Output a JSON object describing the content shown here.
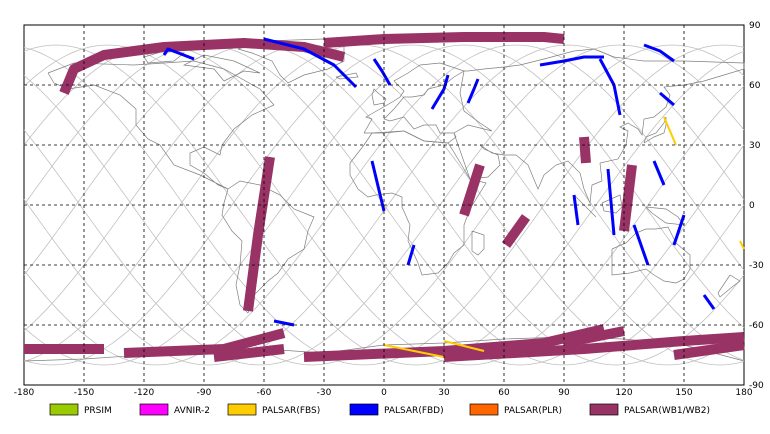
{
  "map": {
    "projection": "equirectangular",
    "lon_ticks": [
      -180,
      -150,
      -120,
      -90,
      -60,
      -30,
      0,
      30,
      60,
      90,
      120,
      150,
      180
    ],
    "lat_ticks": [
      90,
      60,
      30,
      0,
      -30,
      -60,
      -90
    ],
    "lon_tick_labels": [
      "-180",
      "-150",
      "-120",
      "-90",
      "-60",
      "-30",
      "0",
      "30",
      "60",
      "90",
      "120",
      "150",
      "180"
    ],
    "lat_tick_labels": [
      "90",
      "60",
      "30",
      "0",
      "-30",
      "-60",
      "-90"
    ],
    "grid": "dashed",
    "background": "#ffffff"
  },
  "legend": [
    {
      "label": "PRSIM",
      "color": "#99cc00"
    },
    {
      "label": "AVNIR-2",
      "color": "#ff00ff"
    },
    {
      "label": "PALSAR(FBS)",
      "color": "#ffcc00"
    },
    {
      "label": "PALSAR(FBD)",
      "color": "#0000ff"
    },
    {
      "label": "PALSAR(PLR)",
      "color": "#ff6600"
    },
    {
      "label": "PALSAR(WB1/WB2)",
      "color": "#993366"
    }
  ],
  "observations": {
    "wb": [
      {
        "lon": [
          -160,
          -155,
          -140,
          -110,
          -70,
          -40,
          -20
        ],
        "lat": [
          56,
          68,
          75,
          79,
          81,
          79,
          74
        ]
      },
      {
        "lon": [
          -30,
          0,
          40,
          80,
          90
        ],
        "lat": [
          81,
          83,
          84,
          84,
          83
        ]
      },
      {
        "lon": [
          -57,
          -63,
          -68
        ],
        "lat": [
          24,
          -15,
          -53
        ]
      },
      {
        "lon": [
          -180,
          -140
        ],
        "lat": [
          -72,
          -72
        ]
      },
      {
        "lon": [
          -130,
          -80,
          -50
        ],
        "lat": [
          -74,
          -72,
          -64
        ]
      },
      {
        "lon": [
          -85,
          -50
        ],
        "lat": [
          -76,
          -72
        ]
      },
      {
        "lon": [
          -40,
          30,
          80,
          110
        ],
        "lat": [
          -76,
          -73,
          -69,
          -62
        ]
      },
      {
        "lon": [
          30,
          100,
          150,
          180
        ],
        "lat": [
          -76,
          -72,
          -68,
          -66
        ]
      },
      {
        "lon": [
          90,
          120
        ],
        "lat": [
          -69,
          -63
        ]
      },
      {
        "lon": [
          145,
          180
        ],
        "lat": [
          -75,
          -70
        ]
      },
      {
        "lon": [
          40,
          48
        ],
        "lat": [
          -5,
          20
        ]
      },
      {
        "lon": [
          101,
          100
        ],
        "lat": [
          21,
          34
        ]
      },
      {
        "lon": [
          120,
          124
        ],
        "lat": [
          -13,
          20
        ]
      },
      {
        "lon": [
          71,
          61
        ],
        "lat": [
          -6,
          -20
        ]
      }
    ],
    "fbd": [
      {
        "lon": [
          -110,
          -108,
          -95
        ],
        "lat": [
          75,
          78,
          73
        ]
      },
      {
        "lon": [
          -60,
          -40,
          -25,
          -14
        ],
        "lat": [
          83,
          78,
          70,
          59
        ]
      },
      {
        "lon": [
          78,
          90,
          100,
          110
        ],
        "lat": [
          70,
          72,
          74,
          74
        ]
      },
      {
        "lon": [
          24,
          30,
          32
        ],
        "lat": [
          48,
          58,
          65
        ]
      },
      {
        "lon": [
          42,
          45,
          47
        ],
        "lat": [
          51,
          58,
          63
        ]
      },
      {
        "lon": [
          -5,
          -1,
          3
        ],
        "lat": [
          73,
          67,
          60
        ]
      },
      {
        "lon": [
          108,
          115,
          118
        ],
        "lat": [
          73,
          60,
          45
        ]
      },
      {
        "lon": [
          130,
          138,
          145
        ],
        "lat": [
          80,
          77,
          72
        ]
      },
      {
        "lon": [
          138,
          145
        ],
        "lat": [
          56,
          50
        ]
      },
      {
        "lon": [
          95,
          97
        ],
        "lat": [
          5,
          -10
        ]
      },
      {
        "lon": [
          125,
          132
        ],
        "lat": [
          -10,
          -30
        ]
      },
      {
        "lon": [
          -6,
          0
        ],
        "lat": [
          22,
          -3
        ]
      },
      {
        "lon": [
          15,
          12
        ],
        "lat": [
          -20,
          -30
        ]
      },
      {
        "lon": [
          112,
          115
        ],
        "lat": [
          18,
          -15
        ]
      },
      {
        "lon": [
          150,
          145
        ],
        "lat": [
          -5,
          -20
        ]
      },
      {
        "lon": [
          135,
          140
        ],
        "lat": [
          22,
          10
        ]
      },
      {
        "lon": [
          -55,
          -45
        ],
        "lat": [
          -58,
          -60
        ]
      },
      {
        "lon": [
          160,
          165
        ],
        "lat": [
          -45,
          -52
        ]
      }
    ],
    "fbs": [
      {
        "lon": [
          0,
          30
        ],
        "lat": [
          -70,
          -76
        ]
      },
      {
        "lon": [
          30,
          50
        ],
        "lat": [
          -68,
          -73
        ]
      },
      {
        "lon": [
          140,
          146
        ],
        "lat": [
          44,
          30
        ]
      },
      {
        "lon": [
          178,
          180
        ],
        "lat": [
          -18,
          -22
        ]
      }
    ],
    "antarctic_coast": [
      {
        "lon": [
          -180,
          -150,
          -120,
          -90,
          -60,
          -30,
          0,
          30,
          60,
          90,
          120,
          150,
          180
        ],
        "lat": [
          -78,
          -77,
          -75,
          -73,
          -72,
          -74,
          -70,
          -69,
          -67,
          -66,
          -67,
          -70,
          -78
        ]
      }
    ]
  }
}
